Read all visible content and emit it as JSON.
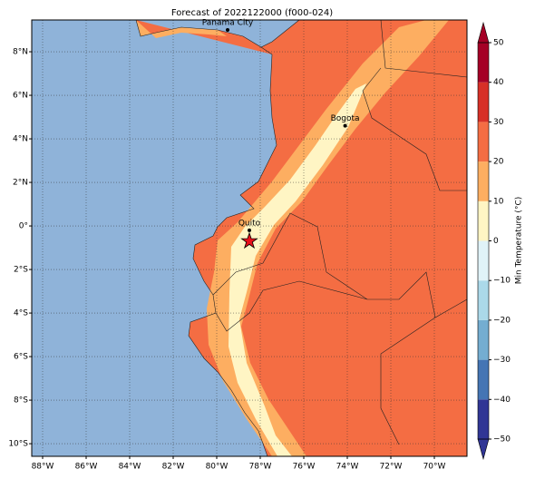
{
  "map": {
    "title": "Forecast of 2022122000 (f000-024)",
    "xlim": [
      -88.5,
      -68.5
    ],
    "ylim": [
      -10.58,
      9.46
    ],
    "xticks": [
      {
        "value": -88,
        "label": "88°W"
      },
      {
        "value": -86,
        "label": "86°W"
      },
      {
        "value": -84,
        "label": "84°W"
      },
      {
        "value": -82,
        "label": "82°W"
      },
      {
        "value": -80,
        "label": "80°W"
      },
      {
        "value": -78,
        "label": "78°W"
      },
      {
        "value": -76,
        "label": "76°W"
      },
      {
        "value": -74,
        "label": "74°W"
      },
      {
        "value": -72,
        "label": "72°W"
      },
      {
        "value": -70,
        "label": "70°W"
      }
    ],
    "yticks": [
      {
        "value": 8,
        "label": "8°N"
      },
      {
        "value": 6,
        "label": "6°N"
      },
      {
        "value": 4,
        "label": "4°N"
      },
      {
        "value": 2,
        "label": "2°N"
      },
      {
        "value": 0,
        "label": "0°"
      },
      {
        "value": -2,
        "label": "2°S"
      },
      {
        "value": -4,
        "label": "4°S"
      },
      {
        "value": -6,
        "label": "6°S"
      },
      {
        "value": -8,
        "label": "8°S"
      },
      {
        "value": -10,
        "label": "10°S"
      }
    ],
    "grid": true,
    "points": [
      {
        "name": "Panama City",
        "lon": -79.5,
        "lat": 9.0
      },
      {
        "name": "Bogota",
        "lon": -74.1,
        "lat": 4.6
      },
      {
        "name": "Quito",
        "lon": -78.5,
        "lat": -0.2
      }
    ],
    "star": {
      "lon": -78.5,
      "lat": -0.7,
      "color": "#e8101a"
    },
    "colorbar": {
      "label": "Min Temperature (°C)",
      "clim": [
        -50,
        50
      ],
      "ticks": [
        {
          "value": -50,
          "label": "−50"
        },
        {
          "value": -40,
          "label": "−40"
        },
        {
          "value": -30,
          "label": "−30"
        },
        {
          "value": -20,
          "label": "−20"
        },
        {
          "value": -10,
          "label": "−10"
        },
        0,
        10,
        20,
        30,
        40,
        50
      ],
      "colors": [
        "#313695",
        "#4575b4",
        "#74add1",
        "#abd9e9",
        "#e0f3f8",
        "#fff5c4",
        "#fdae61",
        "#f46d43",
        "#d73027",
        "#a50026"
      ]
    }
  }
}
